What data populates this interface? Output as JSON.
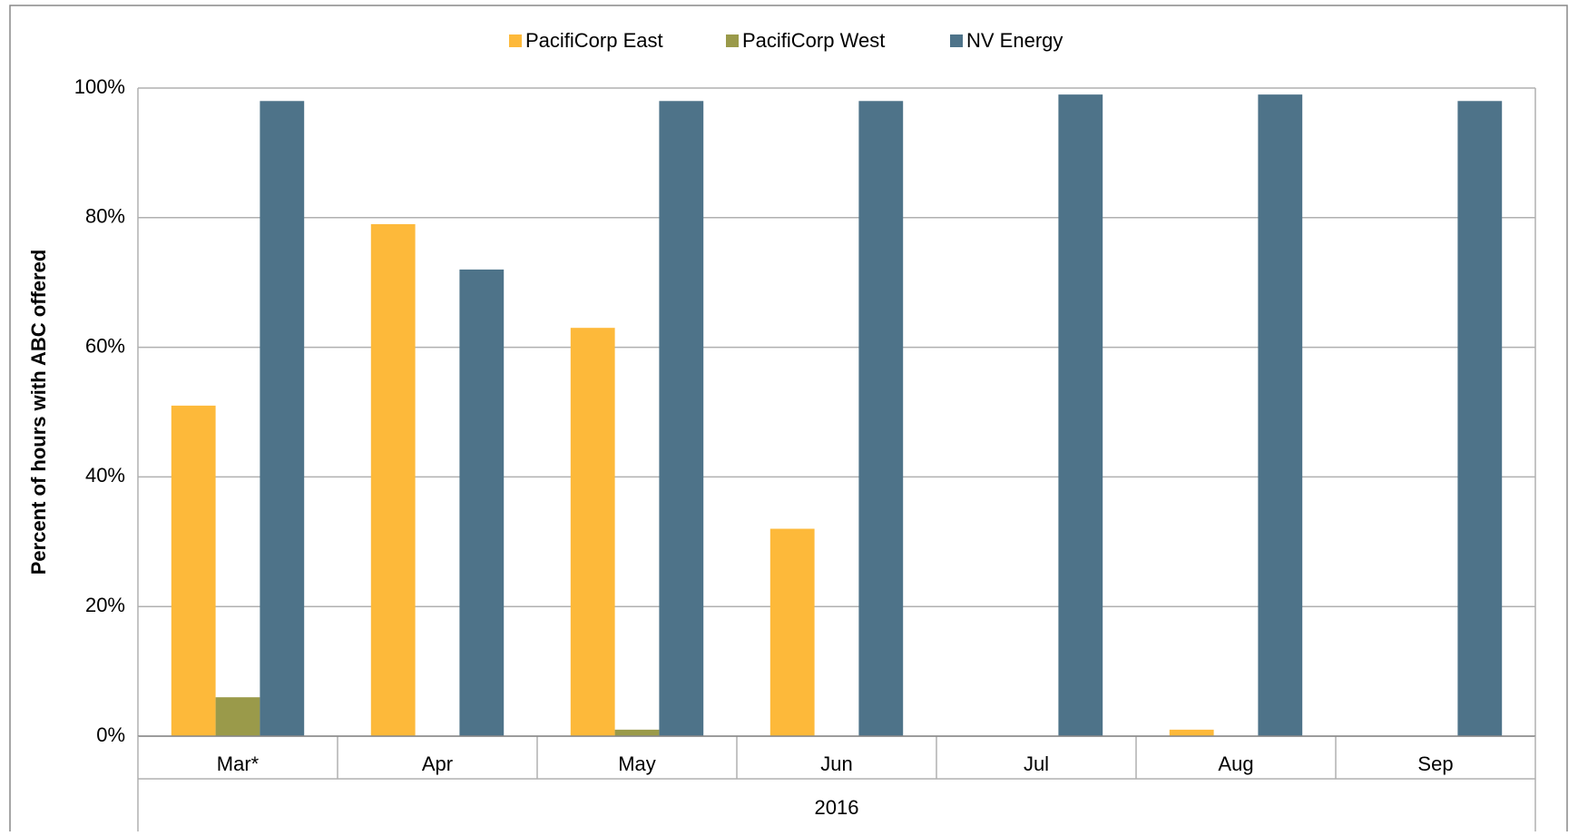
{
  "chart_data": {
    "type": "bar",
    "y_label": "Percent of hours with ABC offered",
    "categories": [
      "Mar*",
      "Apr",
      "May",
      "Jun",
      "Jul",
      "Aug",
      "Sep"
    ],
    "x_group_label": "2016",
    "series": [
      {
        "name": "PacifiCorp East",
        "color": "#FDB93A",
        "values": [
          51,
          79,
          63,
          32,
          0,
          1,
          0
        ]
      },
      {
        "name": "PacifiCorp West",
        "color": "#9A9A4A",
        "values": [
          6,
          0,
          1,
          0,
          0,
          0,
          0
        ]
      },
      {
        "name": "NV Energy",
        "color": "#4E7389",
        "values": [
          98,
          72,
          98,
          98,
          99,
          99,
          98
        ]
      }
    ],
    "ylim": [
      0,
      100
    ],
    "yticks": [
      {
        "value": 0,
        "label": "0%"
      },
      {
        "value": 20,
        "label": "20%"
      },
      {
        "value": 40,
        "label": "40%"
      },
      {
        "value": 60,
        "label": "60%"
      },
      {
        "value": 80,
        "label": "80%"
      },
      {
        "value": 100,
        "label": "100%"
      }
    ],
    "grid": true,
    "legend": "top"
  }
}
